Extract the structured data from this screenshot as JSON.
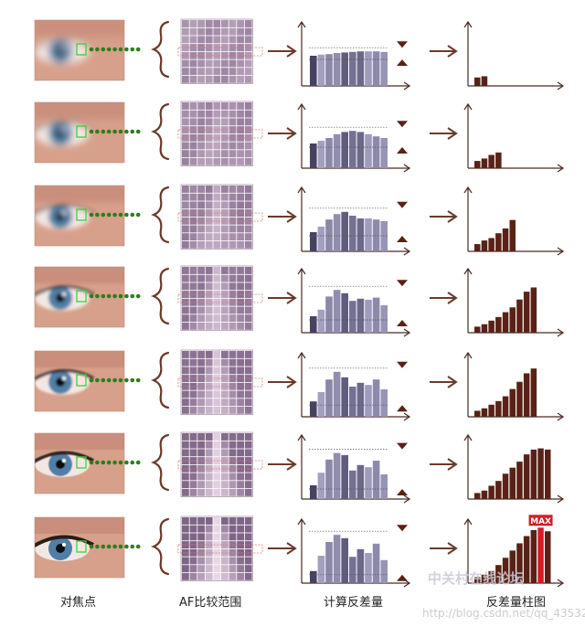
{
  "stage_labels": {
    "focus_point": "对焦点",
    "af_range": "AF比较范围",
    "compute": "计算反差量",
    "histogram": "反差量柱图"
  },
  "max_badge": "MAX",
  "watermark": {
    "site": "中关村在线论坛",
    "url": "http://blog.csdn.net/qq_43532587"
  },
  "colors": {
    "arrow": "#6b3a2a",
    "brace": "#6b3a2a",
    "dots": "#2e7d1e",
    "bar_fill": "#5a2116",
    "max_bar": "#d11e24",
    "axis": "#4a2a22"
  },
  "rows": [
    {
      "sharpness": 0.0,
      "compute_bars": [
        0.55,
        0.57,
        0.58,
        0.6,
        0.61,
        0.62,
        0.63,
        0.63,
        0.63,
        0.62
      ],
      "contrast_bars": [
        0.14,
        0.16
      ]
    },
    {
      "sharpness": 0.2,
      "compute_bars": [
        0.45,
        0.5,
        0.55,
        0.62,
        0.66,
        0.68,
        0.66,
        0.62,
        0.58,
        0.55
      ],
      "contrast_bars": [
        0.12,
        0.16,
        0.22,
        0.26
      ]
    },
    {
      "sharpness": 0.4,
      "compute_bars": [
        0.35,
        0.45,
        0.58,
        0.68,
        0.72,
        0.65,
        0.6,
        0.6,
        0.58,
        0.55
      ],
      "contrast_bars": [
        0.12,
        0.18,
        0.22,
        0.3,
        0.38,
        0.52
      ]
    },
    {
      "sharpness": 0.6,
      "compute_bars": [
        0.3,
        0.42,
        0.66,
        0.78,
        0.72,
        0.58,
        0.62,
        0.6,
        0.64,
        0.5
      ],
      "contrast_bars": [
        0.1,
        0.14,
        0.2,
        0.26,
        0.34,
        0.42,
        0.55,
        0.68,
        0.75
      ]
    },
    {
      "sharpness": 0.75,
      "compute_bars": [
        0.28,
        0.45,
        0.68,
        0.82,
        0.72,
        0.55,
        0.62,
        0.58,
        0.68,
        0.5
      ],
      "contrast_bars": [
        0.1,
        0.14,
        0.2,
        0.26,
        0.34,
        0.46,
        0.58,
        0.72,
        0.8
      ]
    },
    {
      "sharpness": 0.9,
      "compute_bars": [
        0.25,
        0.48,
        0.72,
        0.84,
        0.8,
        0.52,
        0.62,
        0.58,
        0.7,
        0.45
      ],
      "contrast_bars": [
        0.1,
        0.14,
        0.22,
        0.3,
        0.42,
        0.52,
        0.62,
        0.74,
        0.82,
        0.84,
        0.82
      ]
    },
    {
      "sharpness": 1.0,
      "compute_bars": [
        0.22,
        0.5,
        0.75,
        0.88,
        0.82,
        0.48,
        0.62,
        0.55,
        0.72,
        0.42
      ],
      "contrast_bars": [
        0.1,
        0.14,
        0.2,
        0.3,
        0.42,
        0.54,
        0.66,
        0.78,
        0.88,
        0.92,
        0.86
      ]
    }
  ]
}
